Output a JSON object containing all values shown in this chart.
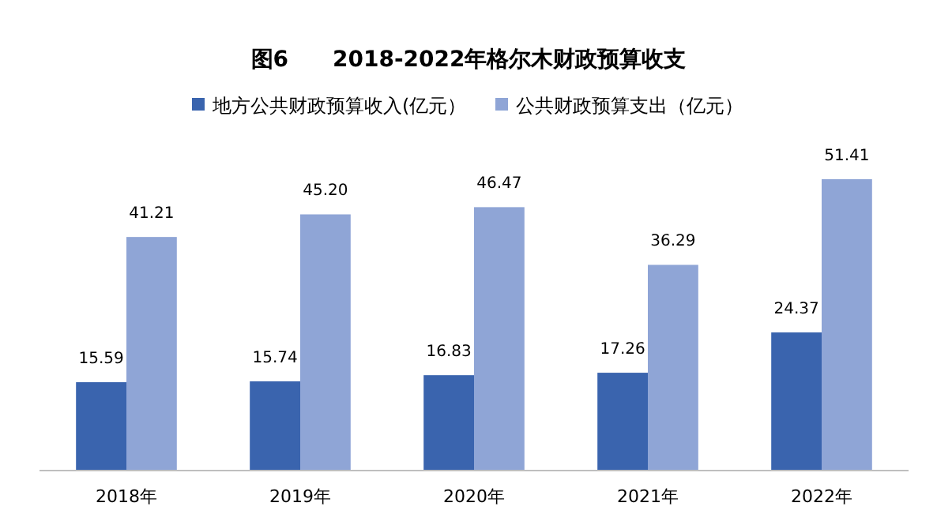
{
  "chart_data": {
    "type": "bar",
    "title": "图6　　2018-2022年格尔木财政预算收支",
    "categories": [
      "2018年",
      "2019年",
      "2020年",
      "2021年",
      "2022年"
    ],
    "series": [
      {
        "name": "地方公共财政预算收入(亿元）",
        "color": "#3a64ae",
        "values": [
          15.59,
          15.74,
          16.83,
          17.26,
          24.37
        ],
        "value_labels": [
          "15.59",
          "15.74",
          "16.83",
          "17.26",
          "24.37"
        ]
      },
      {
        "name": "公共财政预算支出（亿元）",
        "color": "#8fa5d6",
        "values": [
          41.21,
          45.2,
          46.47,
          36.29,
          51.41
        ],
        "value_labels": [
          "41.21",
          "45.20",
          "46.47",
          "36.29",
          "51.41"
        ]
      }
    ],
    "legend": "top",
    "tick_labels": "x"
  }
}
